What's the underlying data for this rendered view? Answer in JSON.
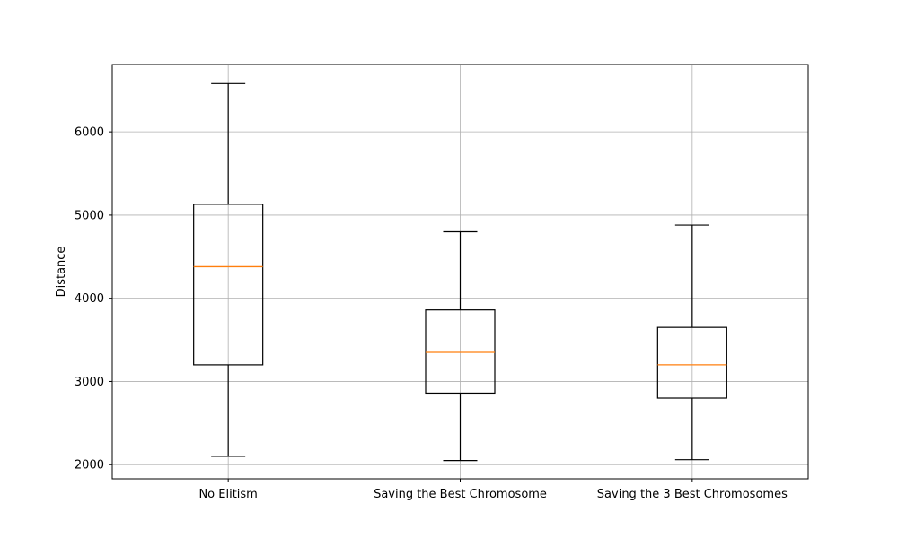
{
  "chart_data": {
    "type": "box",
    "categories": [
      "No Elitism",
      "Saving the Best Chromosome",
      "Saving the 3 Best Chromosomes"
    ],
    "boxes": [
      {
        "whisker_low": 2100,
        "q1": 3200,
        "median": 4380,
        "q3": 5130,
        "whisker_high": 6580
      },
      {
        "whisker_low": 2050,
        "q1": 2860,
        "median": 3350,
        "q3": 3860,
        "whisker_high": 4800
      },
      {
        "whisker_low": 2060,
        "q1": 2800,
        "median": 3200,
        "q3": 3650,
        "whisker_high": 4880
      }
    ],
    "xlabel": "",
    "ylabel": "Distance",
    "ylim": [
      1830,
      6810
    ],
    "yticks": [
      2000,
      3000,
      4000,
      5000,
      6000
    ],
    "grid": true,
    "colors": {
      "box": "#000000",
      "median": "#ff7f0e",
      "grid": "#b0b0b0"
    }
  }
}
